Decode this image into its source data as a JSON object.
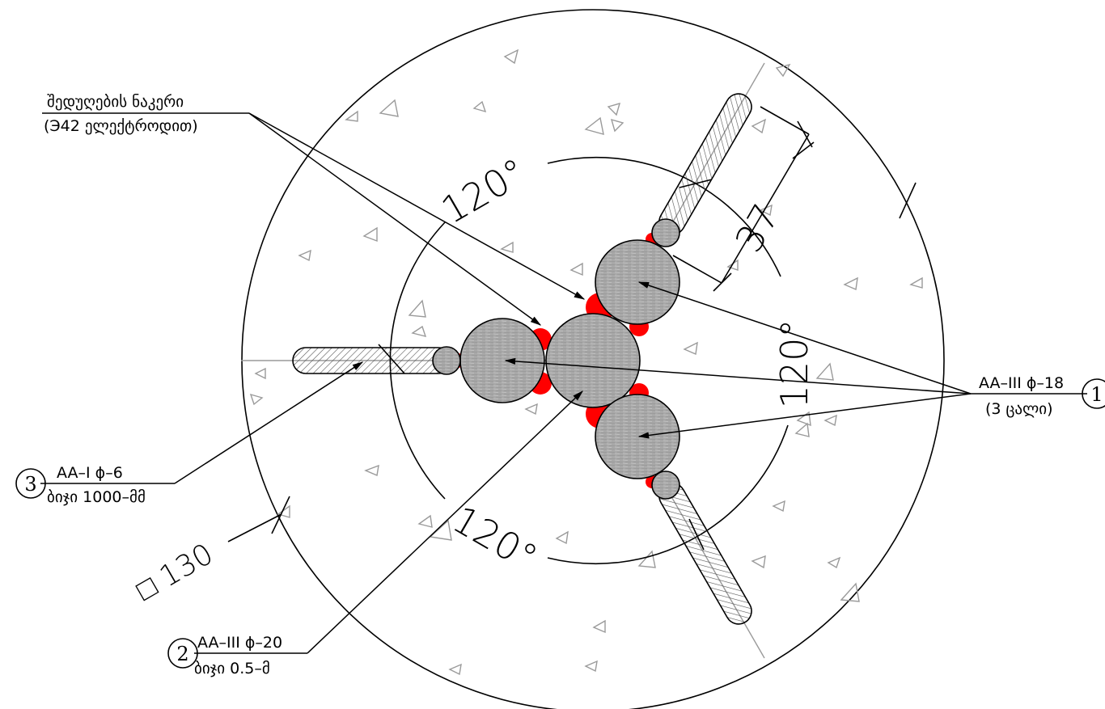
{
  "labels": {
    "weld_title": "შედუღების ნაკერი",
    "weld_sub": "(Э42 ელექტროდით)",
    "rebar_main_top": "AA–III ϕ–18",
    "rebar_main_bottom": "(3 ცალი)",
    "rebar_main_num": "1",
    "stirrup_top": "AA–I ϕ–6",
    "stirrup_bottom": "ბიჯი 1000–მმ",
    "stirrup_num": "3",
    "center_top": "AA–III ϕ–20",
    "center_bottom": "ბიჯი 0.5–მ",
    "center_num": "2",
    "diameter": "□ 130",
    "dim_37": "37",
    "angle_1": "120°",
    "angle_2": "120°",
    "angle_3": "120°"
  },
  "colors": {
    "weld": "#ff0000",
    "bar_fill": "#a8a8a8",
    "line": "#000000",
    "axis": "#9a9a9a"
  }
}
